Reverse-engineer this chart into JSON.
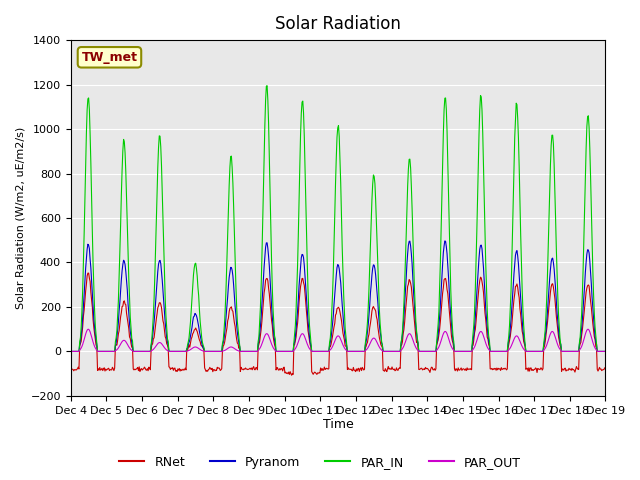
{
  "title": "Solar Radiation",
  "ylabel": "Solar Radiation (W/m2, uE/m2/s)",
  "xlabel": "Time",
  "ylim": [
    -200,
    1400
  ],
  "yticks": [
    -200,
    0,
    200,
    400,
    600,
    800,
    1000,
    1200,
    1400
  ],
  "station_label": "TW_met",
  "bg_color": "#e8e8e8",
  "rnet_color": "#cc0000",
  "pyranom_color": "#0000cc",
  "par_in_color": "#00cc00",
  "par_out_color": "#cc00cc",
  "xtick_labels": [
    "Dec 4",
    "Dec 5",
    "Dec 6",
    "Dec 7",
    "Dec 8",
    "Dec 9",
    "Dec 10",
    "Dec 11",
    "Dec 12",
    "Dec 13",
    "Dec 14",
    "Dec 15",
    "Dec 16",
    "Dec 17",
    "Dec 18",
    "Dec 19"
  ],
  "legend_labels": [
    "RNet",
    "Pyranom",
    "PAR_IN",
    "PAR_OUT"
  ],
  "legend_colors": [
    "#cc0000",
    "#0000cc",
    "#00cc00",
    "#cc00cc"
  ],
  "par_peaks": [
    1150,
    950,
    970,
    400,
    880,
    1200,
    1130,
    1020,
    800,
    870,
    1150,
    1150,
    1120,
    980,
    1070
  ],
  "pyran_peaks": [
    480,
    410,
    410,
    170,
    380,
    490,
    440,
    390,
    390,
    500,
    500,
    480,
    450,
    420,
    460
  ],
  "rnet_peaks": [
    350,
    230,
    220,
    100,
    200,
    330,
    330,
    200,
    200,
    320,
    330,
    330,
    300,
    300,
    300
  ],
  "par_out_peaks": [
    100,
    50,
    40,
    20,
    20,
    80,
    80,
    70,
    60,
    80,
    90,
    90,
    70,
    90,
    100
  ],
  "night_rnet": [
    -80,
    -80,
    -80,
    -80,
    -80,
    -80,
    -100,
    -80,
    -80,
    -80,
    -80,
    -80,
    -80,
    -80,
    -80
  ]
}
